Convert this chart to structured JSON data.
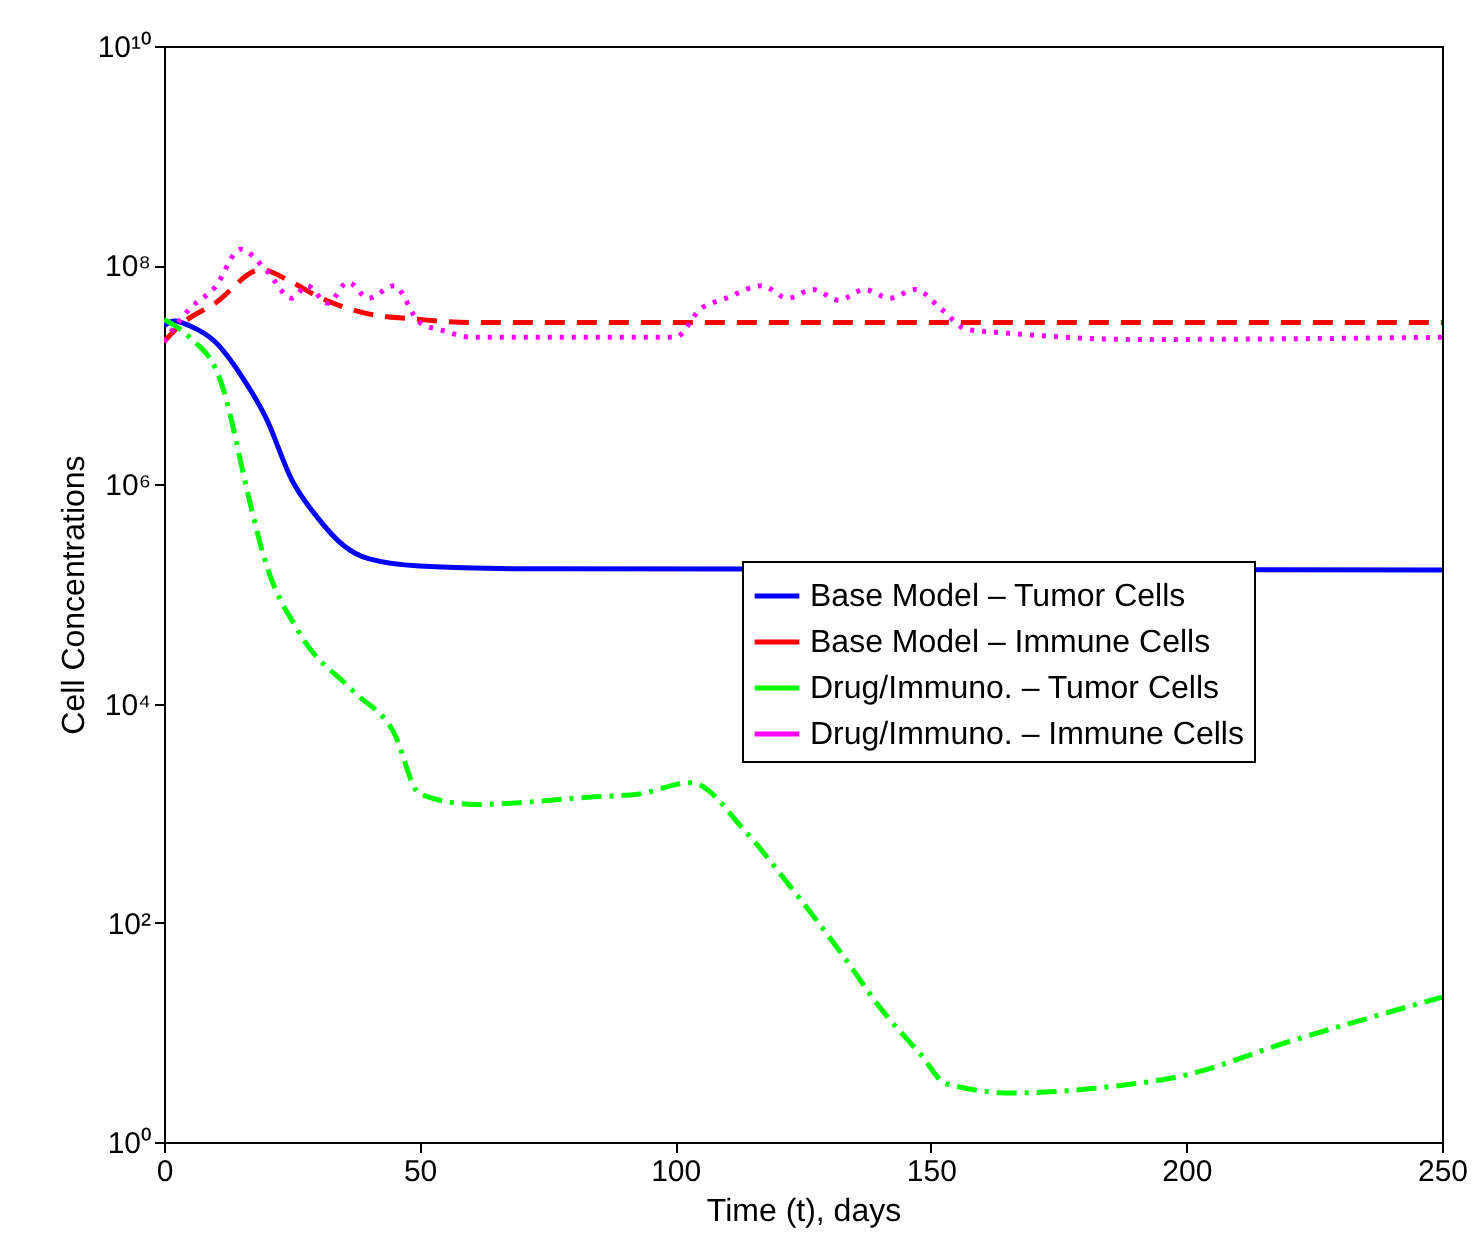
{
  "chart_data": {
    "type": "line",
    "xlabel": "Time (t), days",
    "ylabel": "Cell Concentrations",
    "xlim": [
      0,
      250
    ],
    "xticks": [
      0,
      50,
      100,
      150,
      200,
      250
    ],
    "ylim": [
      1,
      10000000000
    ],
    "yticks": [
      {
        "value": 1,
        "label": "10⁰"
      },
      {
        "value": 100,
        "label": "10²"
      },
      {
        "value": 10000,
        "label": "10⁴"
      },
      {
        "value": 1000000,
        "label": "10⁶"
      },
      {
        "value": 100000000,
        "label": "10⁸"
      },
      {
        "value": 10000000000,
        "label": "10¹⁰"
      }
    ],
    "log": "y",
    "grid": false,
    "legend": "right",
    "series": [
      {
        "name": "Base Model – Tumor Cells",
        "color": "#0000ff",
        "line_style": "solid",
        "x": [
          0,
          2,
          5,
          10,
          15,
          20,
          25,
          30,
          35,
          40,
          50,
          70,
          250
        ],
        "values": [
          28000000,
          31000000,
          28000000,
          20000000,
          10000000,
          4000000,
          1100000,
          500000,
          280000,
          210000,
          180000,
          170000,
          166000
        ]
      },
      {
        "name": "Base Model – Immune Cells",
        "color": "#ff0000",
        "line_style": "dashed",
        "x": [
          0,
          3,
          10,
          19,
          25,
          30,
          40,
          50,
          60,
          250
        ],
        "values": [
          20000000,
          28000000,
          45000000,
          91000000,
          70000000,
          52000000,
          36000000,
          32000000,
          30000000,
          30000000
        ]
      },
      {
        "name": "Drug/Immuno. – Tumor Cells",
        "color": "#00ff00",
        "line_style": "dashdot",
        "x": [
          0,
          5,
          11,
          17,
          19.4,
          26.5,
          37,
          45,
          50,
          61,
          83,
          93,
          103,
          114,
          122,
          132.6,
          140,
          148,
          153,
          166,
          185,
          198,
          221,
          250
        ],
        "values": [
          32000000,
          22000000,
          9000000,
          630000,
          230000,
          44000,
          13000,
          5400,
          1500,
          1200,
          1400,
          1500,
          1900,
          660,
          230,
          52,
          17,
          6.3,
          3.4,
          2.8,
          3.2,
          3.9,
          8.5,
          21
        ]
      },
      {
        "name": "Drug/Immuno. – Immune Cells",
        "color": "#ff00ff",
        "line_style": "dotted",
        "x": [
          0,
          5,
          10,
          15,
          20,
          25,
          28,
          32,
          36,
          40,
          45,
          50,
          55,
          60,
          100,
          105,
          110,
          117,
          122,
          127,
          132,
          137,
          142,
          147,
          152,
          157,
          165,
          190,
          250
        ],
        "values": [
          20000000,
          40000000,
          63000000,
          140000000,
          90000000,
          50000000,
          65000000,
          45000000,
          70000000,
          50000000,
          65000000,
          30000000,
          25000000,
          22000000,
          22000000,
          40000000,
          50000000,
          65000000,
          50000000,
          60000000,
          48000000,
          60000000,
          50000000,
          60000000,
          40000000,
          26000000,
          24000000,
          21000000,
          22000000
        ]
      }
    ]
  }
}
